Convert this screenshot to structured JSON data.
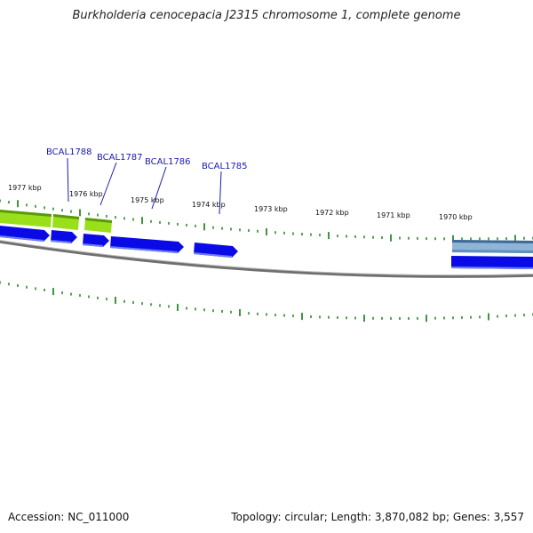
{
  "title": "Burkholderia cenocepacia J2315 chromosome 1, complete genome",
  "accession_text": "Accession: NC_011000",
  "summary_text": "Topology: circular; Length: 3,870,082 bp; Genes: 3,557",
  "kbp_labels": [
    "1977 kbp",
    "1976 kbp",
    "1975 kbp",
    "1974 kbp",
    "1973 kbp",
    "1972 kbp",
    "1971 kbp",
    "1970 kbp"
  ],
  "gene_labels": [
    "BCAL1788",
    "BCAL1787",
    "BCAL1786",
    "BCAL1785"
  ],
  "colors": {
    "forward_gene": "#0a0ae6",
    "forward_gene_light": "#5a6cff",
    "highlight_gene": "#99e01a",
    "highlight_gene_light": "#d8ff9a",
    "operon_band": "#4a7ba8",
    "operon_band_light": "#8fb4d6",
    "tick": "#117a11",
    "backbone": "#777777",
    "label": "#1a1ab0"
  }
}
